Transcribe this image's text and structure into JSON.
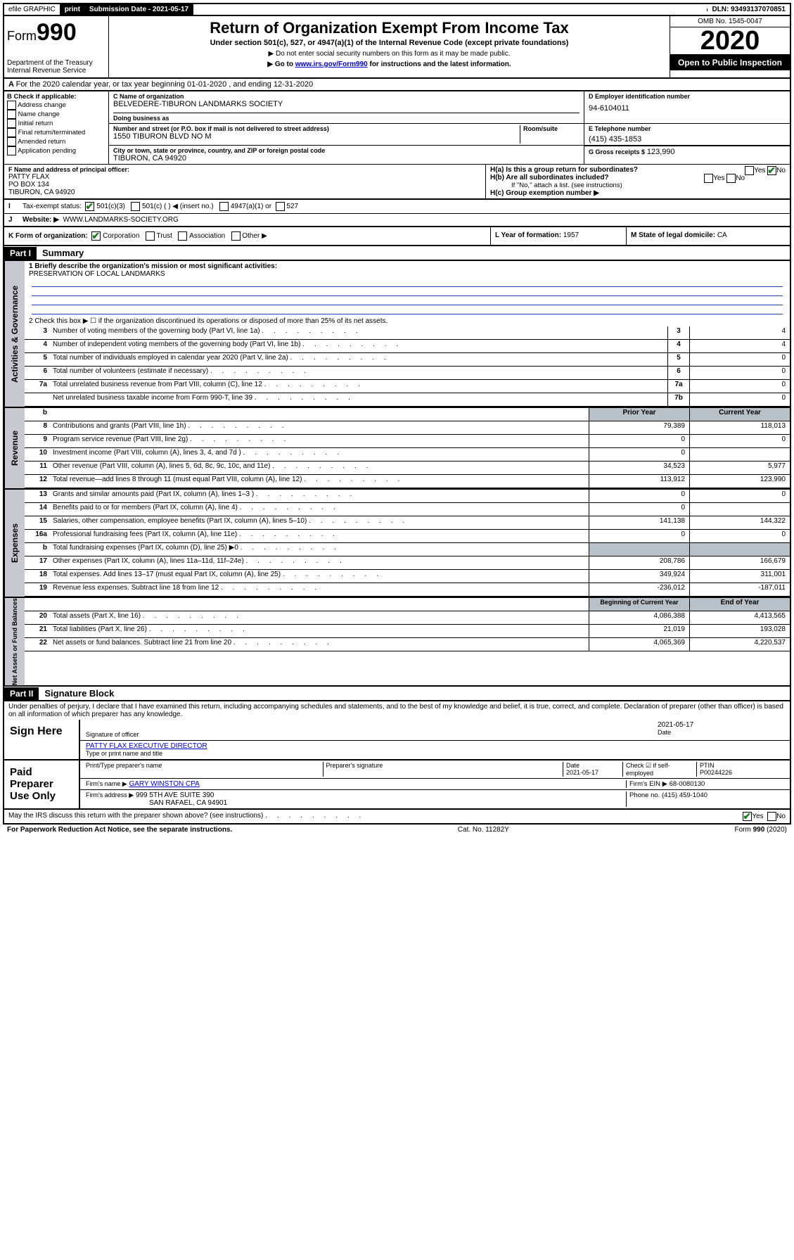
{
  "top": {
    "efile": "efile GRAPHIC",
    "print": "print",
    "subdate_label": "Submission Date - 2021-05-17",
    "dln": "DLN: 93493137070851"
  },
  "header": {
    "form_word": "Form",
    "form_num": "990",
    "dept": "Department of the Treasury",
    "irs": "Internal Revenue Service",
    "title": "Return of Organization Exempt From Income Tax",
    "subtitle": "Under section 501(c), 527, or 4947(a)(1) of the Internal Revenue Code (except private foundations)",
    "note1": "▶ Do not enter social security numbers on this form as it may be made public.",
    "note2_pre": "▶ Go to ",
    "note2_link": "www.irs.gov/Form990",
    "note2_post": " for instructions and the latest information.",
    "omb": "OMB No. 1545-0047",
    "year": "2020",
    "open": "Open to Public Inspection"
  },
  "line_a": "For the 2020 calendar year, or tax year beginning 01-01-2020    , and ending 12-31-2020",
  "box_b": {
    "label": "B Check if applicable:",
    "opts": [
      "Address change",
      "Name change",
      "Initial return",
      "Final return/terminated",
      "Amended return",
      "Application pending"
    ]
  },
  "box_c": {
    "name_label": "C Name of organization",
    "name": "BELVEDERE-TIBURON LANDMARKS SOCIETY",
    "dba_label": "Doing business as",
    "addr_label": "Number and street (or P.O. box if mail is not delivered to street address)",
    "room_label": "Room/suite",
    "addr": "1550 TIBURON BLVD NO M",
    "city_label": "City or town, state or province, country, and ZIP or foreign postal code",
    "city": "TIBURON, CA  94920"
  },
  "box_d": {
    "label": "D Employer identification number",
    "val": "94-6104011"
  },
  "box_e": {
    "label": "E Telephone number",
    "val": "(415) 435-1853"
  },
  "box_g": {
    "label": "G Gross receipts $",
    "val": "123,990"
  },
  "box_f": {
    "label": "F  Name and address of principal officer:",
    "l1": "PATTY FLAX",
    "l2": "PO BOX 134",
    "l3": "TIBURON, CA  94920"
  },
  "box_h": {
    "a": "H(a)  Is this a group return for subordinates?",
    "b": "H(b)  Are all subordinates included?",
    "b_note": "If \"No,\" attach a list. (see instructions)",
    "c": "H(c)  Group exemption number ▶"
  },
  "line_i": {
    "label": "Tax-exempt status:",
    "opt1": "501(c)(3)",
    "opt2": "501(c) (   ) ◀ (insert no.)",
    "opt3": "4947(a)(1) or",
    "opt4": "527"
  },
  "line_j": {
    "label": "Website: ▶",
    "val": "WWW.LANDMARKS-SOCIETY.ORG"
  },
  "line_k": "K Form of organization:",
  "k_opts": [
    "Corporation",
    "Trust",
    "Association",
    "Other ▶"
  ],
  "line_l": {
    "label": "L Year of formation:",
    "val": "1957"
  },
  "line_m": {
    "label": "M State of legal domicile:",
    "val": "CA"
  },
  "part1": {
    "hdr": "Part I",
    "title": "Summary"
  },
  "summary": {
    "l1_label": "1  Briefly describe the organization's mission or most significant activities:",
    "l1_val": "PRESERVATION OF LOCAL LANDMARKS",
    "l2": "2   Check this box ▶ ☐  if the organization discontinued its operations or disposed of more than 25% of its net assets.",
    "rows_ag": [
      {
        "n": "3",
        "d": "Number of voting members of the governing body (Part VI, line 1a)",
        "ln": "3",
        "v": "4"
      },
      {
        "n": "4",
        "d": "Number of independent voting members of the governing body (Part VI, line 1b)",
        "ln": "4",
        "v": "4"
      },
      {
        "n": "5",
        "d": "Total number of individuals employed in calendar year 2020 (Part V, line 2a)",
        "ln": "5",
        "v": "0"
      },
      {
        "n": "6",
        "d": "Total number of volunteers (estimate if necessary)",
        "ln": "6",
        "v": "0"
      },
      {
        "n": "7a",
        "d": "Total unrelated business revenue from Part VIII, column (C), line 12",
        "ln": "7a",
        "v": "0"
      },
      {
        "n": "",
        "d": "Net unrelated business taxable income from Form 990-T, line 39",
        "ln": "7b",
        "v": "0"
      }
    ],
    "col_hdrs": {
      "b": "b",
      "prior": "Prior Year",
      "current": "Current Year"
    },
    "revenue": [
      {
        "n": "8",
        "d": "Contributions and grants (Part VIII, line 1h)",
        "p": "79,389",
        "c": "118,013"
      },
      {
        "n": "9",
        "d": "Program service revenue (Part VIII, line 2g)",
        "p": "0",
        "c": "0"
      },
      {
        "n": "10",
        "d": "Investment income (Part VIII, column (A), lines 3, 4, and 7d )",
        "p": "0",
        "c": ""
      },
      {
        "n": "11",
        "d": "Other revenue (Part VIII, column (A), lines 5, 6d, 8c, 9c, 10c, and 11e)",
        "p": "34,523",
        "c": "5,977"
      },
      {
        "n": "12",
        "d": "Total revenue—add lines 8 through 11 (must equal Part VIII, column (A), line 12)",
        "p": "113,912",
        "c": "123,990"
      }
    ],
    "expenses": [
      {
        "n": "13",
        "d": "Grants and similar amounts paid (Part IX, column (A), lines 1–3 )",
        "p": "0",
        "c": "0"
      },
      {
        "n": "14",
        "d": "Benefits paid to or for members (Part IX, column (A), line 4)",
        "p": "0",
        "c": ""
      },
      {
        "n": "15",
        "d": "Salaries, other compensation, employee benefits (Part IX, column (A), lines 5–10)",
        "p": "141,138",
        "c": "144,322"
      },
      {
        "n": "16a",
        "d": "Professional fundraising fees (Part IX, column (A), line 11e)",
        "p": "0",
        "c": "0"
      },
      {
        "n": "b",
        "d": "Total fundraising expenses (Part IX, column (D), line 25) ▶0",
        "p": "",
        "c": "",
        "grey": true
      },
      {
        "n": "17",
        "d": "Other expenses (Part IX, column (A), lines 11a–11d, 11f–24e)",
        "p": "208,786",
        "c": "166,679"
      },
      {
        "n": "18",
        "d": "Total expenses. Add lines 13–17 (must equal Part IX, column (A), line 25)",
        "p": "349,924",
        "c": "311,001"
      },
      {
        "n": "19",
        "d": "Revenue less expenses. Subtract line 18 from line 12",
        "p": "-236,012",
        "c": "-187,011"
      }
    ],
    "na_hdrs": {
      "begin": "Beginning of Current Year",
      "end": "End of Year"
    },
    "netassets": [
      {
        "n": "20",
        "d": "Total assets (Part X, line 16)",
        "p": "4,086,388",
        "c": "4,413,565"
      },
      {
        "n": "21",
        "d": "Total liabilities (Part X, line 26)",
        "p": "21,019",
        "c": "193,028"
      },
      {
        "n": "22",
        "d": "Net assets or fund balances. Subtract line 21 from line 20",
        "p": "4,065,369",
        "c": "4,220,537"
      }
    ]
  },
  "tabs": {
    "ag": "Activities & Governance",
    "rev": "Revenue",
    "exp": "Expenses",
    "na": "Net Assets or Fund Balances"
  },
  "part2": {
    "hdr": "Part II",
    "title": "Signature Block"
  },
  "perjury": "Under penalties of perjury, I declare that I have examined this return, including accompanying schedules and statements, and to the best of my knowledge and belief, it is true, correct, and complete. Declaration of preparer (other than officer) is based on all information of which preparer has any knowledge.",
  "sign": {
    "here": "Sign Here",
    "sig_officer": "Signature of officer",
    "date": "2021-05-17",
    "date_label": "Date",
    "name": "PATTY FLAX  EXECUTIVE DIRECTOR",
    "name_label": "Type or print name and title"
  },
  "paid": {
    "label": "Paid Preparer Use Only",
    "h1": "Print/Type preparer's name",
    "h2": "Preparer's signature",
    "h3": "Date",
    "h3v": "2021-05-17",
    "h4": "Check ☑ if self-employed",
    "h5": "PTIN",
    "h5v": "P00244226",
    "firm_label": "Firm's name    ▶",
    "firm": "GARY WINSTON CPA",
    "ein_label": "Firm's EIN ▶",
    "ein": "68-0080130",
    "addr_label": "Firm's address ▶",
    "addr1": "999 5TH AVE SUITE 390",
    "addr2": "SAN RAFAEL, CA  94901",
    "phone_label": "Phone no.",
    "phone": "(415) 459-1040"
  },
  "bottom": {
    "discuss": "May the IRS discuss this return with the preparer shown above? (see instructions)",
    "paperwork": "For Paperwork Reduction Act Notice, see the separate instructions.",
    "cat": "Cat. No. 11282Y",
    "form": "Form 990 (2020)"
  }
}
